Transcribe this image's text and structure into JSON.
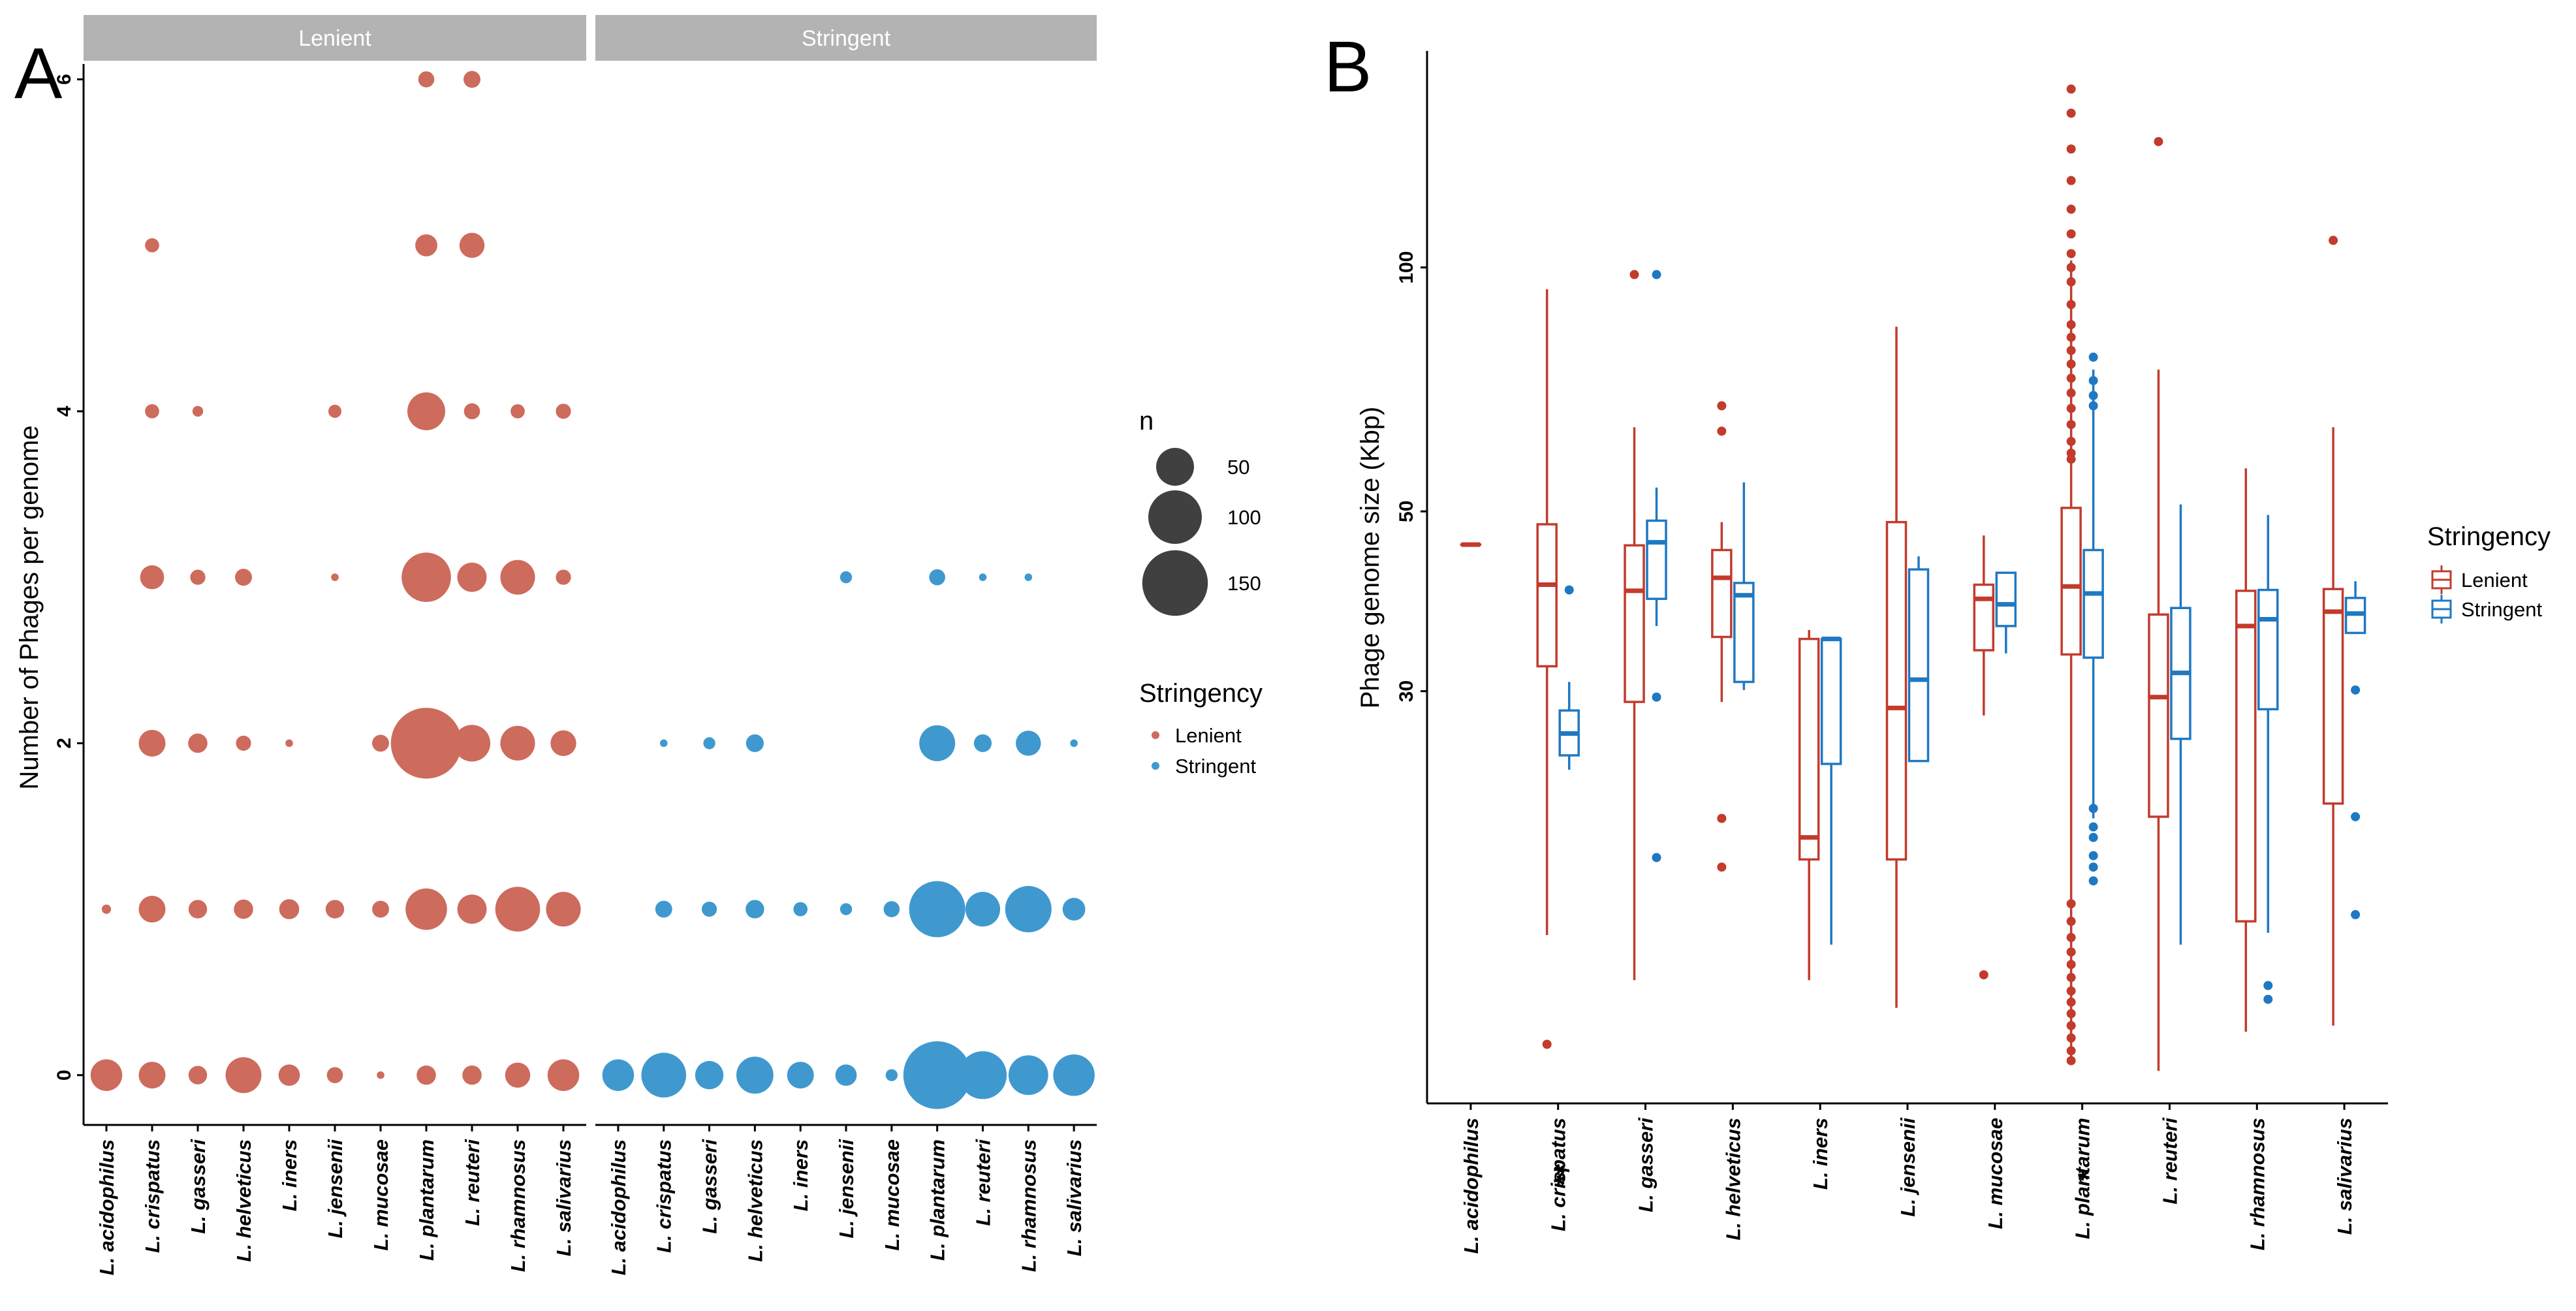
{
  "chart_data": [
    {
      "panel": "A",
      "type": "scatter",
      "subtype": "bubble",
      "ylabel": "Number of Phages per genome",
      "xlabel": "",
      "ylim": [
        -0.3,
        6.25
      ],
      "yticks": [
        0,
        2,
        4,
        6
      ],
      "grid": false,
      "facets": [
        "Lenient",
        "Stringent"
      ],
      "categories": [
        "L. acidophilus",
        "L. crispatus",
        "L. gasseri",
        "L. helveticus",
        "L. iners",
        "L. jensenii",
        "L. mucosae",
        "L. plantarum",
        "L. reuteri",
        "L. rhamnosus",
        "L. salivarius"
      ],
      "series": [
        {
          "name": "Lenient",
          "color": "#cd6b5d",
          "points": [
            {
              "c": "L. acidophilus",
              "y": 0,
              "n": 35
            },
            {
              "c": "L. acidophilus",
              "y": 1,
              "n": 3
            },
            {
              "c": "L. crispatus",
              "y": 0,
              "n": 25
            },
            {
              "c": "L. crispatus",
              "y": 1,
              "n": 25
            },
            {
              "c": "L. crispatus",
              "y": 2,
              "n": 25
            },
            {
              "c": "L. crispatus",
              "y": 3,
              "n": 20
            },
            {
              "c": "L. crispatus",
              "y": 4,
              "n": 7
            },
            {
              "c": "L. crispatus",
              "y": 5,
              "n": 7
            },
            {
              "c": "L. gasseri",
              "y": 0,
              "n": 12
            },
            {
              "c": "L. gasseri",
              "y": 1,
              "n": 12
            },
            {
              "c": "L. gasseri",
              "y": 2,
              "n": 13
            },
            {
              "c": "L. gasseri",
              "y": 3,
              "n": 8
            },
            {
              "c": "L. gasseri",
              "y": 4,
              "n": 4
            },
            {
              "c": "L. helveticus",
              "y": 0,
              "n": 45
            },
            {
              "c": "L. helveticus",
              "y": 1,
              "n": 13
            },
            {
              "c": "L. helveticus",
              "y": 2,
              "n": 8
            },
            {
              "c": "L. helveticus",
              "y": 3,
              "n": 10
            },
            {
              "c": "L. iners",
              "y": 0,
              "n": 16
            },
            {
              "c": "L. iners",
              "y": 1,
              "n": 14
            },
            {
              "c": "L. iners",
              "y": 2,
              "n": 2
            },
            {
              "c": "L. jensenii",
              "y": 0,
              "n": 9
            },
            {
              "c": "L. jensenii",
              "y": 1,
              "n": 12
            },
            {
              "c": "L. jensenii",
              "y": 3,
              "n": 2
            },
            {
              "c": "L. jensenii",
              "y": 4,
              "n": 6
            },
            {
              "c": "L. mucosae",
              "y": 0,
              "n": 2
            },
            {
              "c": "L. mucosae",
              "y": 1,
              "n": 10
            },
            {
              "c": "L. mucosae",
              "y": 2,
              "n": 10
            },
            {
              "c": "L. plantarum",
              "y": 0,
              "n": 13
            },
            {
              "c": "L. plantarum",
              "y": 1,
              "n": 60
            },
            {
              "c": "L. plantarum",
              "y": 2,
              "n": 175
            },
            {
              "c": "L. plantarum",
              "y": 3,
              "n": 85
            },
            {
              "c": "L. plantarum",
              "y": 4,
              "n": 50
            },
            {
              "c": "L. plantarum",
              "y": 5,
              "n": 17
            },
            {
              "c": "L. plantarum",
              "y": 6,
              "n": 9
            },
            {
              "c": "L. reuteri",
              "y": 0,
              "n": 13
            },
            {
              "c": "L. reuteri",
              "y": 1,
              "n": 30
            },
            {
              "c": "L. reuteri",
              "y": 2,
              "n": 47
            },
            {
              "c": "L. reuteri",
              "y": 3,
              "n": 30
            },
            {
              "c": "L. reuteri",
              "y": 4,
              "n": 9
            },
            {
              "c": "L. reuteri",
              "y": 5,
              "n": 22
            },
            {
              "c": "L. reuteri",
              "y": 6,
              "n": 10
            },
            {
              "c": "L. rhamnosus",
              "y": 0,
              "n": 22
            },
            {
              "c": "L. rhamnosus",
              "y": 1,
              "n": 70
            },
            {
              "c": "L. rhamnosus",
              "y": 2,
              "n": 42
            },
            {
              "c": "L. rhamnosus",
              "y": 3,
              "n": 42
            },
            {
              "c": "L. rhamnosus",
              "y": 4,
              "n": 7
            },
            {
              "c": "L. salivarius",
              "y": 0,
              "n": 35
            },
            {
              "c": "L. salivarius",
              "y": 1,
              "n": 42
            },
            {
              "c": "L. salivarius",
              "y": 2,
              "n": 23
            },
            {
              "c": "L. salivarius",
              "y": 3,
              "n": 8
            },
            {
              "c": "L. salivarius",
              "y": 4,
              "n": 8
            }
          ]
        },
        {
          "name": "Stringent",
          "color": "#3f99cf",
          "points": [
            {
              "c": "L. acidophilus",
              "y": 0,
              "n": 35
            },
            {
              "c": "L. crispatus",
              "y": 0,
              "n": 70
            },
            {
              "c": "L. crispatus",
              "y": 1,
              "n": 10
            },
            {
              "c": "L. crispatus",
              "y": 2,
              "n": 2
            },
            {
              "c": "L. gasseri",
              "y": 0,
              "n": 28
            },
            {
              "c": "L. gasseri",
              "y": 1,
              "n": 8
            },
            {
              "c": "L. gasseri",
              "y": 2,
              "n": 5
            },
            {
              "c": "L. helveticus",
              "y": 0,
              "n": 48
            },
            {
              "c": "L. helveticus",
              "y": 1,
              "n": 12
            },
            {
              "c": "L. helveticus",
              "y": 2,
              "n": 11
            },
            {
              "c": "L. iners",
              "y": 0,
              "n": 25
            },
            {
              "c": "L. iners",
              "y": 1,
              "n": 7
            },
            {
              "c": "L. jensenii",
              "y": 0,
              "n": 16
            },
            {
              "c": "L. jensenii",
              "y": 1,
              "n": 5
            },
            {
              "c": "L. jensenii",
              "y": 3,
              "n": 5
            },
            {
              "c": "L. mucosae",
              "y": 0,
              "n": 5
            },
            {
              "c": "L. mucosae",
              "y": 1,
              "n": 9
            },
            {
              "c": "L. plantarum",
              "y": 0,
              "n": 160
            },
            {
              "c": "L. plantarum",
              "y": 1,
              "n": 110
            },
            {
              "c": "L. plantarum",
              "y": 2,
              "n": 45
            },
            {
              "c": "L. plantarum",
              "y": 3,
              "n": 9
            },
            {
              "c": "L. reuteri",
              "y": 0,
              "n": 80
            },
            {
              "c": "L. reuteri",
              "y": 1,
              "n": 42
            },
            {
              "c": "L. reuteri",
              "y": 2,
              "n": 11
            },
            {
              "c": "L. reuteri",
              "y": 3,
              "n": 2
            },
            {
              "c": "L. rhamnosus",
              "y": 0,
              "n": 55
            },
            {
              "c": "L. rhamnosus",
              "y": 1,
              "n": 75
            },
            {
              "c": "L. rhamnosus",
              "y": 2,
              "n": 22
            },
            {
              "c": "L. rhamnosus",
              "y": 3,
              "n": 2
            },
            {
              "c": "L. salivarius",
              "y": 0,
              "n": 60
            },
            {
              "c": "L. salivarius",
              "y": 1,
              "n": 18
            },
            {
              "c": "L. salivarius",
              "y": 2,
              "n": 2
            }
          ]
        }
      ],
      "size_legend": {
        "title": "n",
        "values": [
          50,
          100,
          150
        ]
      },
      "color_legend": {
        "title": "Stringency",
        "entries": [
          "Lenient",
          "Stringent"
        ]
      },
      "legend_position": "right"
    },
    {
      "panel": "B",
      "type": "boxplot",
      "ylabel": "Phage genome size (Kbp)",
      "xlabel": "",
      "yscale": "log",
      "ylim": [
        9.3,
        185
      ],
      "yticks": [
        30,
        50,
        100
      ],
      "grid": false,
      "categories": [
        "L. acidophilus",
        "L. crispatus",
        "L. gasseri",
        "L. helveticus",
        "L. iners",
        "L. jensenii",
        "L. mucosae",
        "L. plantarum",
        "L. reuteri",
        "L. rhamnosus",
        "L. salivarius"
      ],
      "significance": {
        "L. crispatus": "**",
        "L. plantarum": "*"
      },
      "series": [
        {
          "name": "Lenient",
          "color": "#c23b2c",
          "boxes": [
            {
              "c": "L. acidophilus",
              "min": 45.5,
              "q1": 45.5,
              "median": 45.5,
              "q3": 45.5,
              "max": 45.5,
              "outliers": []
            },
            {
              "c": "L. crispatus",
              "min": 15.0,
              "q1": 32.2,
              "median": 40.6,
              "q3": 48.2,
              "max": 94.0,
              "outliers": [
                11.0
              ]
            },
            {
              "c": "L. gasseri",
              "min": 13.2,
              "q1": 29.1,
              "median": 39.9,
              "q3": 45.4,
              "max": 63.5,
              "outliers": [
                98.0
              ]
            },
            {
              "c": "L. helveticus",
              "min": 29.1,
              "q1": 35.0,
              "median": 41.4,
              "q3": 44.8,
              "max": 48.5,
              "outliers": [
                67.5,
                62.8,
                20.9,
                18.2
              ]
            },
            {
              "c": "L. iners",
              "min": 13.2,
              "q1": 18.6,
              "median": 19.8,
              "q3": 34.8,
              "max": 35.7,
              "outliers": []
            },
            {
              "c": "L. jensenii",
              "min": 12.2,
              "q1": 18.6,
              "median": 28.6,
              "q3": 48.5,
              "max": 84.5,
              "outliers": []
            },
            {
              "c": "L. mucosae",
              "min": 28.0,
              "q1": 33.7,
              "median": 39.0,
              "q3": 40.6,
              "max": 46.7,
              "outliers": [
                13.4
              ]
            },
            {
              "c": "L. plantarum",
              "min": 10.5,
              "q1": 33.3,
              "median": 40.4,
              "q3": 50.5,
              "max": 102.0,
              "outliers": [
                166,
                155,
                140,
                128,
                118,
                110,
                104,
                100,
                96,
                90,
                85,
                82,
                79,
                76,
                73,
                70,
                67,
                64,
                61,
                59,
                58,
                16.4,
                15.6,
                14.9,
                14.3,
                13.8,
                13.3,
                12.8,
                12.4,
                12.0,
                11.6,
                11.2,
                10.8,
                10.5
              ]
            },
            {
              "c": "L. reuteri",
              "min": 10.2,
              "q1": 21.0,
              "median": 29.5,
              "q3": 37.3,
              "max": 74.8,
              "outliers": [
                143.0
              ]
            },
            {
              "c": "L. rhamnosus",
              "min": 11.4,
              "q1": 15.6,
              "median": 36.1,
              "q3": 39.9,
              "max": 56.5,
              "outliers": []
            },
            {
              "c": "L. salivarius",
              "min": 11.6,
              "q1": 21.8,
              "median": 37.6,
              "q3": 40.1,
              "max": 63.5,
              "outliers": [
                108.0
              ]
            }
          ]
        },
        {
          "name": "Stringent",
          "color": "#1f78c2",
          "boxes": [
            {
              "c": "L. crispatus",
              "min": 24.0,
              "q1": 25.0,
              "median": 26.6,
              "q3": 28.4,
              "max": 30.8,
              "outliers": [
                40.0
              ]
            },
            {
              "c": "L. gasseri",
              "min": 36.1,
              "q1": 39.0,
              "median": 45.8,
              "q3": 48.7,
              "max": 53.5,
              "outliers": [
                98.0,
                29.5,
                18.7
              ]
            },
            {
              "c": "L. helveticus",
              "min": 30.1,
              "q1": 30.8,
              "median": 39.4,
              "q3": 40.8,
              "max": 54.3,
              "outliers": []
            },
            {
              "c": "L. iners",
              "min": 14.6,
              "q1": 24.4,
              "median": 34.8,
              "q3": 34.8,
              "max": 34.8,
              "outliers": []
            },
            {
              "c": "L. jensenii",
              "min": 24.6,
              "q1": 24.6,
              "median": 31.0,
              "q3": 42.4,
              "max": 44.0,
              "outliers": []
            },
            {
              "c": "L. mucosae",
              "min": 33.4,
              "q1": 36.1,
              "median": 38.4,
              "q3": 42.0,
              "max": 42.0,
              "outliers": []
            },
            {
              "c": "L. plantarum",
              "min": 20.9,
              "q1": 33.0,
              "median": 39.6,
              "q3": 44.8,
              "max": 74.8,
              "outliers": [
                77.5,
                72.5,
                69.5,
                67.5,
                21.5,
                20.4,
                19.8,
                18.8,
                18.2,
                17.5
              ]
            },
            {
              "c": "L. reuteri",
              "min": 14.6,
              "q1": 26.2,
              "median": 31.6,
              "q3": 38.0,
              "max": 51.0,
              "outliers": []
            },
            {
              "c": "L. rhamnosus",
              "min": 15.1,
              "q1": 28.5,
              "median": 36.8,
              "q3": 40.0,
              "max": 49.5,
              "outliers": [
                13.0,
                12.5
              ]
            },
            {
              "c": "L. salivarius",
              "min": 35.4,
              "q1": 35.4,
              "median": 37.4,
              "q3": 39.1,
              "max": 41.0,
              "outliers": [
                30.1,
                21.0,
                15.9
              ]
            }
          ]
        }
      ],
      "color_legend": {
        "title": "Stringency",
        "entries": [
          "Lenient",
          "Stringent"
        ]
      },
      "legend_position": "right"
    }
  ]
}
